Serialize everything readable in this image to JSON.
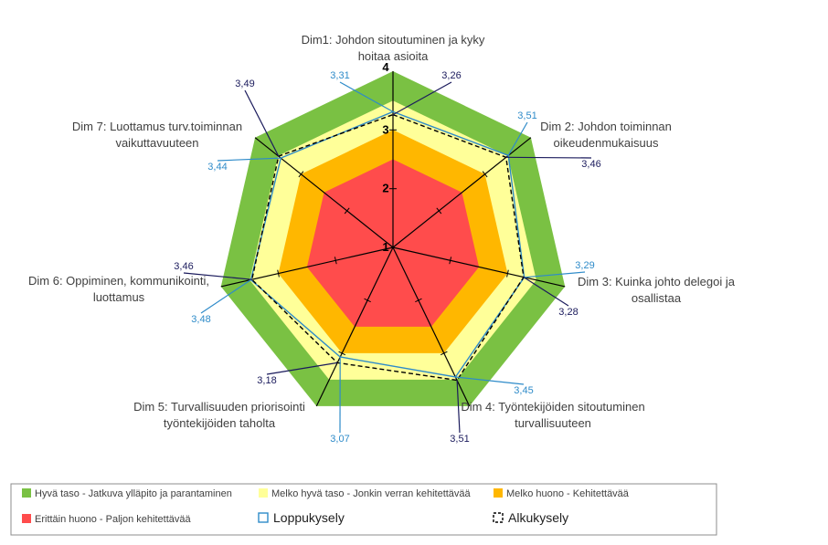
{
  "chart_data": {
    "type": "radar",
    "axis_range": [
      1,
      4
    ],
    "ticks": [
      "1",
      "2",
      "3",
      "4"
    ],
    "dimensions": [
      {
        "lines": [
          "Dim1: Johdon sitoutuminen ja kyky",
          "hoitaa asioita"
        ]
      },
      {
        "lines": [
          "Dim 2: Johdon toiminnan",
          "oikeudenmukaisuus"
        ]
      },
      {
        "lines": [
          "Dim 3: Kuinka johto delegoi ja",
          "osallistaa"
        ]
      },
      {
        "lines": [
          "Dim 4: Työntekijöiden sitoutuminen",
          "turvallisuuteen"
        ]
      },
      {
        "lines": [
          "Dim 5: Turvallisuuden priorisointi",
          "työntekijöiden taholta"
        ]
      },
      {
        "lines": [
          "Dim 6: Oppiminen, kommunikointi,",
          "luottamus"
        ]
      },
      {
        "lines": [
          "Dim 7: Luottamus turv.toiminnan",
          "vaikuttavuuteen"
        ]
      }
    ],
    "bands": [
      {
        "name": "Hyvä taso - Jatkuva ylläpito ja parantaminen",
        "from": 3.5,
        "to": 4.0,
        "color": "#7ac143"
      },
      {
        "name": "Melko hyvä taso - Jonkin verran kehitettävää",
        "from": 3.0,
        "to": 3.5,
        "color": "#ffff99"
      },
      {
        "name": "Melko huono - Kehitettävää",
        "from": 2.5,
        "to": 3.0,
        "color": "#ffb700"
      },
      {
        "name": "Erittäin huono - Paljon kehitettävää",
        "from": 1.0,
        "to": 2.5,
        "color": "#ff4c4c"
      }
    ],
    "series": [
      {
        "name": "Loppukysely",
        "values": [
          3.31,
          3.51,
          3.29,
          3.45,
          3.07,
          3.48,
          3.44
        ],
        "labels": [
          "3,31",
          "3,51",
          "3,29",
          "3,45",
          "3,07",
          "3,48",
          "3,44"
        ],
        "color": "#2e8bc9"
      },
      {
        "name": "Alkukysely",
        "values": [
          3.26,
          3.46,
          3.28,
          3.51,
          3.18,
          3.46,
          3.49
        ],
        "labels": [
          "3,26",
          "3,46",
          "3,28",
          "3,51",
          "3,18",
          "3,46",
          "3,49"
        ],
        "color": "#1a1a5c"
      }
    ]
  }
}
